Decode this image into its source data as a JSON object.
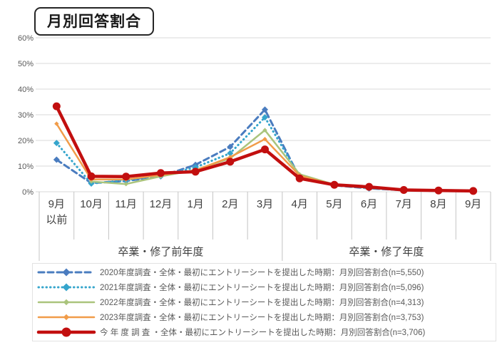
{
  "title": "月別回答割合",
  "chart_data": {
    "type": "line",
    "title": "月別回答割合",
    "xlabel": "",
    "ylabel": "",
    "ylim": [
      0,
      60
    ],
    "grid": true,
    "legend_position": "bottom",
    "y_ticks": [
      "0%",
      "10%",
      "20%",
      "30%",
      "40%",
      "50%",
      "60%"
    ],
    "categories": [
      "9月\n以前",
      "10月",
      "11月",
      "12月",
      "1月",
      "2月",
      "3月",
      "4月",
      "5月",
      "6月",
      "7月",
      "8月",
      "9月"
    ],
    "axis_groups": [
      {
        "label": "卒業・修了前年度",
        "span": [
          0,
          6
        ]
      },
      {
        "label": "卒業・修了年度",
        "span": [
          7,
          12
        ]
      }
    ],
    "series": [
      {
        "key": "2020",
        "name": "2020年度調査・全体・最初にエントリーシートを提出した時期：月別回答割合(n=5,550)",
        "n": "5,550",
        "color": "#4a7cbf",
        "line": "dashed",
        "width": 3,
        "marker": "diamond",
        "marker_size": 4.5,
        "values": [
          12.5,
          3.4,
          4.2,
          6.0,
          10.5,
          17.5,
          32.0,
          5.5,
          2.5,
          1.3,
          0.6,
          0.3,
          0.2
        ]
      },
      {
        "key": "2021",
        "name": "2021年度調査・全体・最初にエントリーシートを提出した時期：月別回答割合(n=5,096)",
        "n": "5,096",
        "color": "#35a5cc",
        "line": "dotted",
        "width": 3,
        "marker": "diamond",
        "marker_size": 4.5,
        "values": [
          19.0,
          3.2,
          4.5,
          6.2,
          9.5,
          15.0,
          29.0,
          6.0,
          2.6,
          1.4,
          0.6,
          0.3,
          0.2
        ]
      },
      {
        "key": "2022",
        "name": "2022年度調査・全体・最初にエントリーシートを提出した時期：月別回答割合(n=4,313)",
        "n": "4,313",
        "color": "#aac47c",
        "line": "solid",
        "width": 2.5,
        "marker": "diamond",
        "marker_size": 3.2,
        "values": [
          null,
          4.0,
          3.0,
          6.0,
          8.5,
          13.0,
          24.0,
          6.8,
          2.8,
          1.6,
          0.7,
          0.4,
          0.3
        ]
      },
      {
        "key": "2023",
        "name": "2023年度調査・全体・最初にエントリーシートを提出した時期：月別回答割合(n=3,753)",
        "n": "3,753",
        "color": "#f19c49",
        "line": "solid",
        "width": 2.5,
        "marker": "diamond",
        "marker_size": 3.2,
        "values": [
          26.5,
          4.8,
          4.8,
          6.5,
          8.3,
          13.5,
          20.5,
          6.3,
          2.7,
          1.5,
          0.7,
          0.4,
          0.3
        ]
      },
      {
        "key": "current",
        "name": "今 年 度 調 査 ・全体・最初にエントリーシートを提出した時期：月別回答割合(n=3,706)",
        "n": "3,706",
        "color": "#c20f0f",
        "line": "solid",
        "width": 4.5,
        "marker": "circle",
        "marker_size": 5.5,
        "values": [
          33.3,
          6.0,
          5.9,
          7.3,
          7.8,
          11.7,
          16.5,
          5.2,
          2.7,
          1.9,
          0.7,
          0.5,
          0.3
        ]
      }
    ],
    "colors": {
      "gridline": "#d9d9d9",
      "axis_separator": "#c4c4c4",
      "tick_text": "#595959",
      "category_text": "#3f3f3f",
      "legend_text": "#595959"
    }
  }
}
